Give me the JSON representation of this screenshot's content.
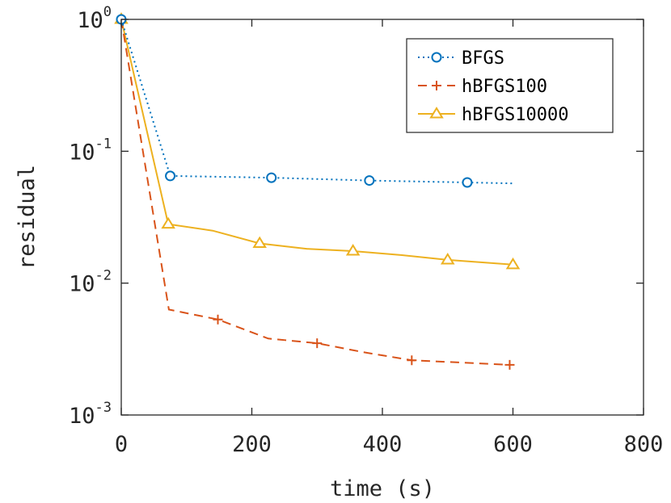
{
  "chart_data": {
    "type": "line",
    "xlabel": "time (s)",
    "ylabel": "residual",
    "xlim": [
      0,
      800
    ],
    "ylim": [
      0.001,
      1
    ],
    "yscale": "log",
    "xticks": [
      0,
      200,
      400,
      600,
      800
    ],
    "xtick_labels": [
      "0",
      "200",
      "400",
      "600",
      "800"
    ],
    "yticks": [
      {
        "value": 1,
        "base": "10",
        "exp": "0"
      },
      {
        "value": 0.1,
        "base": "10",
        "exp": "-1"
      },
      {
        "value": 0.01,
        "base": "10",
        "exp": "-2"
      },
      {
        "value": 0.001,
        "base": "10",
        "exp": "-3"
      }
    ],
    "grid": false,
    "legend_position": "top-right",
    "series": [
      {
        "name": "BFGS",
        "color": "#0072BD",
        "line_style": "dotted",
        "marker": "circle",
        "x": [
          0,
          75,
          230,
          380,
          530,
          600
        ],
        "y": [
          1.0,
          0.065,
          0.063,
          0.06,
          0.058,
          0.057
        ],
        "marker_x": [
          0,
          75,
          230,
          380,
          530
        ]
      },
      {
        "name": "hBFGS100",
        "color": "#D95319",
        "line_style": "dashed",
        "marker": "plus",
        "x": [
          0,
          73,
          148,
          225,
          300,
          370,
          445,
          520,
          595
        ],
        "y": [
          1.0,
          0.0063,
          0.0053,
          0.0038,
          0.0035,
          0.003,
          0.0026,
          0.0025,
          0.0024
        ],
        "marker_x": [
          0,
          148,
          300,
          445,
          595
        ]
      },
      {
        "name": "hBFGS10000",
        "color": "#EDB120",
        "line_style": "solid",
        "marker": "triangle",
        "x": [
          0,
          72,
          140,
          212,
          285,
          355,
          430,
          500,
          600
        ],
        "y": [
          1.0,
          0.028,
          0.025,
          0.02,
          0.0182,
          0.0175,
          0.0163,
          0.015,
          0.0138
        ],
        "marker_x": [
          0,
          72,
          212,
          355,
          500,
          600
        ]
      }
    ]
  }
}
